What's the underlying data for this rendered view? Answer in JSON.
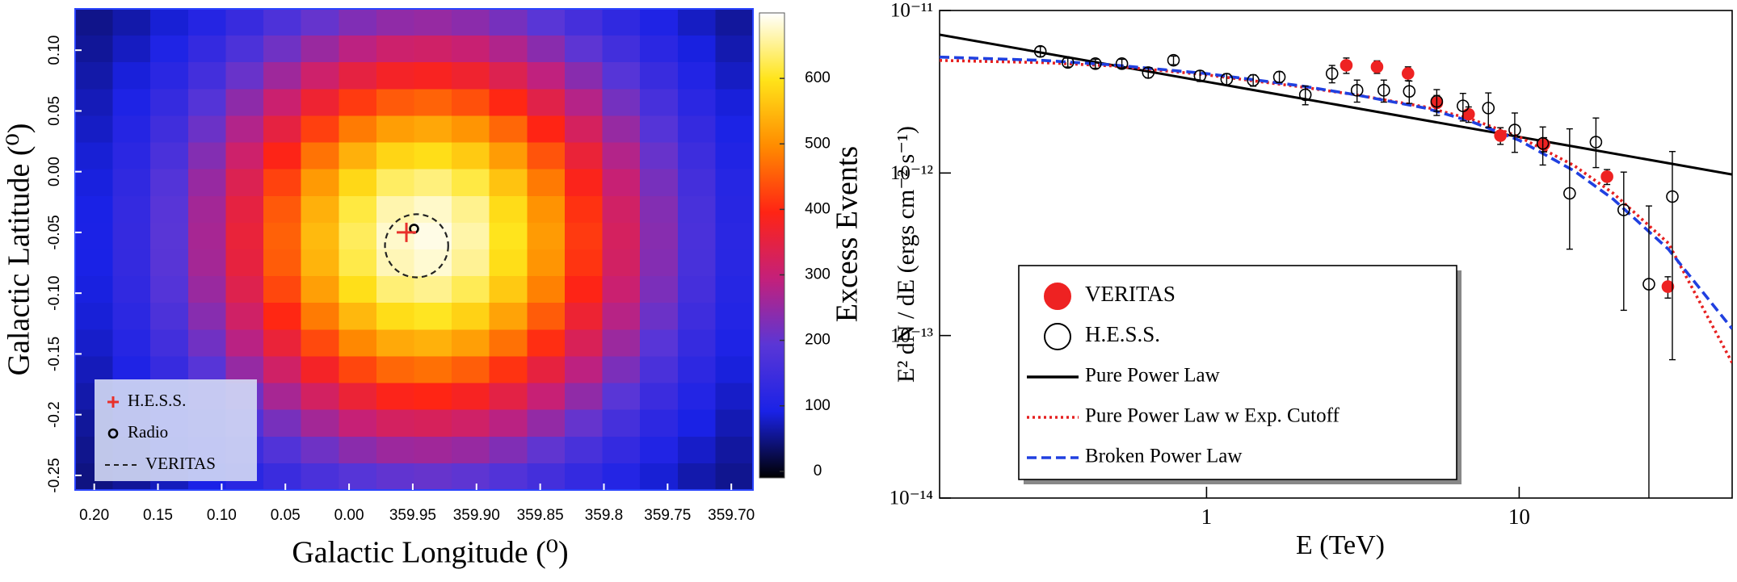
{
  "chart_data": [
    {
      "type": "heatmap",
      "xlabel": "Galactic Longitude (⁰)",
      "ylabel": "Galactic Latitude (⁰)",
      "xlim": [
        360.215,
        359.683
      ],
      "ylim": [
        -0.262,
        0.134
      ],
      "xticks": [
        {
          "value": 360.2,
          "label": "0.20"
        },
        {
          "value": 360.15,
          "label": "0.15"
        },
        {
          "value": 360.1,
          "label": "0.10"
        },
        {
          "value": 360.05,
          "label": "0.05"
        },
        {
          "value": 360.0,
          "label": "0.00"
        },
        359.95,
        {
          "value": 359.9,
          "label": "359.90"
        },
        359.85,
        359.8,
        359.75,
        {
          "value": 359.7,
          "label": "359.70"
        }
      ],
      "yticks": [
        {
          "value": 0.1,
          "label": "0.10"
        },
        0.05,
        {
          "value": 0,
          "label": "0.00"
        },
        -0.05,
        {
          "value": -0.1,
          "label": "-0.10"
        },
        -0.15,
        -0.2,
        -0.25
      ],
      "z": [
        [
          51,
          65,
          84,
          109,
          139,
          172,
          203,
          229,
          245,
          250,
          240,
          220,
          191,
          159,
          127,
          99,
          76,
          59
        ],
        [
          57,
          75,
          100,
          132,
          171,
          213,
          253,
          287,
          308,
          313,
          302,
          275,
          238,
          196,
          155,
          118,
          89,
          67
        ],
        [
          64,
          86,
          117,
          157,
          206,
          258,
          309,
          351,
          377,
          383,
          369,
          336,
          290,
          237,
          186,
          140,
          104,
          76
        ],
        [
          71,
          97,
          135,
          184,
          242,
          305,
          366,
          417,
          448,
          457,
          439,
          399,
          343,
          280,
          218,
          163,
          119,
          86
        ],
        [
          77,
          109,
          152,
          209,
          277,
          351,
          423,
          481,
          518,
          528,
          507,
          461,
          396,
          322,
          250,
          185,
          134,
          95
        ],
        [
          84,
          119,
          168,
          232,
          309,
          393,
          473,
          539,
          581,
          592,
          569,
          516,
          443,
          360,
          278,
          205,
          147,
          103
        ],
        [
          88,
          127,
          181,
          251,
          334,
          425,
          513,
          585,
          631,
          642,
          617,
          560,
          480,
          389,
          300,
          221,
          158,
          110
        ],
        [
          92,
          132,
          189,
          263,
          351,
          447,
          539,
          616,
          664,
          676,
          650,
          589,
          505,
          409,
          315,
          232,
          165,
          114
        ],
        [
          93,
          134,
          192,
          267,
          358,
          455,
          550,
          628,
          677,
          689,
          662,
          600,
          514,
          417,
          321,
          236,
          167,
          116
        ],
        [
          92,
          133,
          190,
          264,
          353,
          450,
          543,
          620,
          668,
          680,
          653,
          592,
          507,
          411,
          317,
          233,
          165,
          115
        ],
        [
          89,
          128,
          183,
          253,
          338,
          430,
          519,
          593,
          639,
          650,
          625,
          567,
          486,
          394,
          304,
          224,
          159,
          111
        ],
        [
          85,
          120,
          171,
          236,
          314,
          399,
          481,
          548,
          591,
          602,
          578,
          524,
          450,
          365,
          282,
          209,
          149,
          105
        ],
        [
          79,
          111,
          155,
          214,
          284,
          359,
          432,
          493,
          531,
          540,
          519,
          471,
          405,
          329,
          255,
          189,
          136,
          97
        ],
        [
          72,
          99,
          138,
          188,
          249,
          314,
          377,
          429,
          461,
          470,
          452,
          410,
          353,
          288,
          224,
          167,
          122,
          87
        ],
        [
          65,
          88,
          120,
          162,
          212,
          267,
          319,
          362,
          390,
          397,
          382,
          347,
          299,
          245,
          192,
          144,
          106,
          78
        ],
        [
          58,
          77,
          103,
          136,
          177,
          221,
          263,
          298,
          320,
          325,
          313,
          285,
          247,
          203,
          160,
          122,
          91,
          69
        ],
        [
          52,
          66,
          87,
          113,
          145,
          179,
          212,
          239,
          256,
          260,
          251,
          229,
          199,
          165,
          132,
          102,
          78,
          60
        ],
        [
          47,
          57,
          73,
          93,
          116,
          142,
          167,
          187,
          200,
          204,
          197,
          180,
          158,
          132,
          107,
          84,
          66,
          53
        ]
      ],
      "colormap": [
        "#000000",
        "#1a22e6",
        "#5a36d6",
        "#c4207a",
        "#ff2414",
        "#ff8c00",
        "#ffe41a",
        "#ffffff"
      ],
      "clim": [
        -10,
        700
      ],
      "cticks": [
        0,
        100,
        200,
        300,
        400,
        500,
        600
      ],
      "clabel": "Excess Events",
      "markers": [
        {
          "name": "H.E.S.S.",
          "marker": "cross",
          "x": 359.955,
          "y": -0.05,
          "color": "#e8302a"
        },
        {
          "name": "Radio",
          "marker": "circle",
          "x": 359.949,
          "y": -0.047,
          "color": "#000000"
        },
        {
          "name": "VERITAS",
          "marker": "dashed-circle",
          "x": 359.947,
          "y": -0.061,
          "r": 0.026,
          "color": "#222222"
        }
      ]
    },
    {
      "type": "scatter",
      "xlabel": "E (TeV)",
      "ylabel": "E² dN / dE (ergs cm⁻² s⁻¹)",
      "xscale": "log",
      "yscale": "log",
      "xlim": [
        0.14,
        48
      ],
      "ylim": [
        1e-14,
        1e-11
      ],
      "xticks": [
        1,
        10
      ],
      "yticks": [
        {
          "value": 1e-11,
          "label": "10⁻¹¹"
        },
        {
          "value": 1e-12,
          "label": "10⁻¹²"
        },
        {
          "value": 1e-13,
          "label": "10⁻¹³"
        },
        {
          "value": 1e-14,
          "label": "10⁻¹⁴"
        }
      ],
      "legend": "lower left",
      "series": [
        {
          "name": "VERITAS",
          "kind": "points",
          "marker": "filled",
          "color": "#ee2222",
          "x": [
            2.8,
            3.51,
            4.41,
            5.45,
            6.89,
            8.71,
            12.0,
            19.1,
            29.9
          ],
          "values": [
            4.6e-12,
            4.5e-12,
            4.1e-12,
            2.7e-12,
            2.3e-12,
            1.7e-12,
            1.5e-12,
            9.5e-13,
            2e-13
          ],
          "yerr_minus": [
            5e-13,
            4e-13,
            4e-13,
            3e-13,
            2.5e-13,
            2e-13,
            1.5e-13,
            1e-13,
            3e-14
          ],
          "yerr_plus": [
            5e-13,
            4e-13,
            4e-13,
            3e-13,
            2.5e-13,
            2e-13,
            1.5e-13,
            1e-13,
            3e-14
          ]
        },
        {
          "name": "H.E.S.S.",
          "kind": "points",
          "marker": "open",
          "color": "#000000",
          "x": [
            0.294,
            0.36,
            0.441,
            0.536,
            0.651,
            0.784,
            0.953,
            1.16,
            1.41,
            1.71,
            2.07,
            2.52,
            3.03,
            3.69,
            4.45,
            5.45,
            6.61,
            7.97,
            9.68,
            11.9,
            14.5,
            17.6,
            21.6,
            26.0,
            30.9
          ],
          "values": [
            5.6e-12,
            4.79e-12,
            4.71e-12,
            4.71e-12,
            4.15e-12,
            4.94e-12,
            3.96e-12,
            3.78e-12,
            3.72e-12,
            3.9e-12,
            3.03e-12,
            4.09e-12,
            3.23e-12,
            3.23e-12,
            3.18e-12,
            2.76e-12,
            2.59e-12,
            2.51e-12,
            1.84e-12,
            1.52e-12,
            7.5e-13,
            1.55e-12,
            5.93e-13,
            2.07e-13,
            7.16e-13
          ],
          "yerr_minus": [
            4e-13,
            3e-13,
            3e-13,
            3e-13,
            3e-13,
            3e-13,
            3e-13,
            3e-13,
            3e-13,
            3e-13,
            4e-13,
            5e-13,
            5e-13,
            5e-13,
            5e-13,
            5e-13,
            5e-13,
            6e-13,
            5e-13,
            4e-13,
            4.1e-13,
            4.7e-13,
            4.5e-13,
            2.07e-13,
            6.45e-13
          ],
          "yerr_plus": [
            4e-13,
            3e-13,
            3e-13,
            3e-13,
            3e-13,
            3e-13,
            3e-13,
            3e-13,
            3e-13,
            3e-13,
            4e-13,
            5e-13,
            5e-13,
            5e-13,
            5e-13,
            5e-13,
            5e-13,
            6e-13,
            5e-13,
            4e-13,
            1.12e-12,
            6.3e-13,
            4.2e-13,
            4.2e-13,
            6.4e-13
          ]
        },
        {
          "name": "Pure Power Law",
          "kind": "line",
          "dash": "solid",
          "color": "#000000",
          "x": [
            0.14,
            48
          ],
          "values": [
            7.1e-12,
            9.8e-13
          ]
        },
        {
          "name": "Pure Power Law w Exp. Cutoff",
          "kind": "line",
          "dash": "dotted",
          "color": "#e62020",
          "x": [
            0.14,
            0.3,
            0.5,
            1,
            2,
            3,
            5,
            7,
            10,
            15,
            20,
            30,
            48
          ],
          "values": [
            4.93e-12,
            4.78e-12,
            4.56e-12,
            4.02e-12,
            3.39e-12,
            3.03e-12,
            2.55e-12,
            2.15e-12,
            1.67e-12,
            1.11e-12,
            7.5e-13,
            3.7e-13,
            6.8e-14
          ]
        },
        {
          "name": "Broken Power Law",
          "kind": "line",
          "dash": "dashed",
          "color": "#2040e0",
          "x": [
            0.14,
            0.3,
            0.5,
            1,
            2,
            3,
            5,
            7,
            10,
            15,
            20,
            30,
            48
          ],
          "values": [
            5.17e-12,
            4.93e-12,
            4.63e-12,
            4.09e-12,
            3.44e-12,
            3.03e-12,
            2.51e-12,
            2.08e-12,
            1.59e-12,
            1.03e-12,
            6.9e-13,
            3.4e-13,
            1.1e-13
          ]
        }
      ]
    }
  ]
}
